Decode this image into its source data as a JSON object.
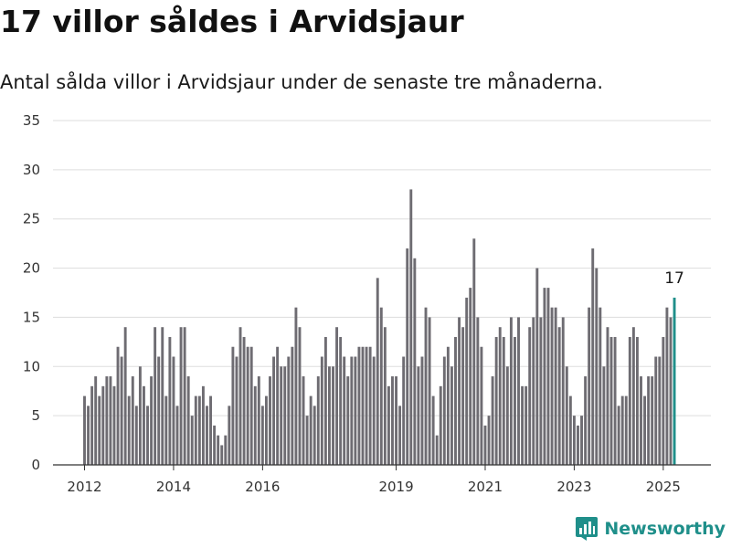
{
  "header": {
    "title": "17 villor såldes i Arvidsjaur",
    "subtitle": "Antal sålda villor i Arvidsjaur under de senaste tre månaderna."
  },
  "brand": {
    "name": "Newsworthy",
    "color": "#1f8f8a"
  },
  "colors": {
    "bar": "#6e6c72",
    "highlight": "#1f8f8a",
    "grid": "#dddddd",
    "axis": "#333333"
  },
  "chart_data": {
    "type": "bar",
    "title": "",
    "xlabel": "",
    "ylabel": "",
    "ylim": [
      0,
      35
    ],
    "yticks": [
      0,
      5,
      10,
      15,
      20,
      25,
      30,
      35
    ],
    "grid": true,
    "legend": "none",
    "x_tick_labels": [
      "2012",
      "2014",
      "2016",
      "2019",
      "2021",
      "2023",
      "2025"
    ],
    "x_tick_positions": [
      0,
      24,
      48,
      84,
      108,
      132,
      156
    ],
    "highlight_index": 159,
    "highlight_label": "17",
    "values": [
      7,
      6,
      8,
      9,
      7,
      8,
      9,
      9,
      8,
      12,
      11,
      14,
      7,
      9,
      6,
      10,
      8,
      6,
      9,
      14,
      11,
      14,
      7,
      13,
      11,
      6,
      14,
      14,
      9,
      5,
      7,
      7,
      8,
      6,
      7,
      4,
      3,
      2,
      3,
      6,
      12,
      11,
      14,
      13,
      12,
      12,
      8,
      9,
      6,
      7,
      9,
      11,
      12,
      10,
      10,
      11,
      12,
      16,
      14,
      9,
      5,
      7,
      6,
      9,
      11,
      13,
      10,
      10,
      14,
      13,
      11,
      9,
      11,
      11,
      12,
      12,
      12,
      12,
      11,
      19,
      16,
      14,
      8,
      9,
      9,
      6,
      11,
      22,
      28,
      21,
      10,
      11,
      16,
      15,
      7,
      3,
      8,
      11,
      12,
      10,
      13,
      15,
      14,
      17,
      18,
      23,
      15,
      12,
      4,
      5,
      9,
      13,
      14,
      13,
      10,
      15,
      13,
      15,
      8,
      8,
      14,
      15,
      20,
      15,
      18,
      18,
      16,
      16,
      14,
      15,
      10,
      7,
      5,
      4,
      5,
      9,
      16,
      22,
      20,
      16,
      10,
      14,
      13,
      13,
      6,
      7,
      7,
      13,
      14,
      13,
      9,
      7,
      9,
      9,
      11,
      11,
      13,
      16,
      15,
      17
    ]
  }
}
